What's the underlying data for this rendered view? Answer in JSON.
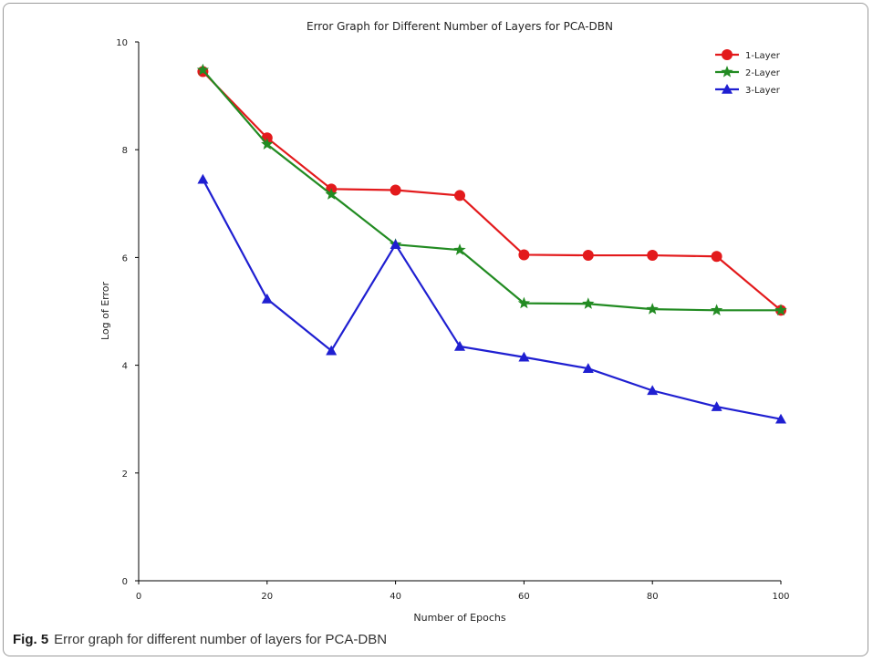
{
  "caption": {
    "label": "Fig. 5",
    "text": "Error graph for different number of layers for PCA-DBN"
  },
  "chart_data": {
    "type": "line",
    "title": "Error Graph for Different Number of Layers for PCA-DBN",
    "xlabel": "Number of Epochs",
    "ylabel": "Log of Error",
    "xlim": [
      0,
      100
    ],
    "ylim": [
      0,
      10
    ],
    "xticks": [
      0,
      20,
      40,
      60,
      80,
      100
    ],
    "yticks": [
      0,
      2,
      4,
      6,
      8,
      10
    ],
    "grid": false,
    "legend_position": "top-right",
    "x": [
      10,
      20,
      30,
      40,
      50,
      60,
      70,
      80,
      90,
      100
    ],
    "series": [
      {
        "name": "1-Layer",
        "color": "#e31a1c",
        "marker": "circle",
        "values": [
          9.45,
          8.22,
          7.27,
          7.25,
          7.15,
          6.05,
          6.04,
          6.04,
          6.02,
          5.02
        ]
      },
      {
        "name": "2-Layer",
        "color": "#228b22",
        "marker": "star",
        "values": [
          9.48,
          8.1,
          7.17,
          6.24,
          6.14,
          5.15,
          5.14,
          5.04,
          5.02,
          5.02
        ]
      },
      {
        "name": "3-Layer",
        "color": "#1f1fd1",
        "marker": "triangle",
        "values": [
          7.45,
          5.23,
          4.27,
          6.24,
          4.35,
          4.15,
          3.94,
          3.53,
          3.23,
          3.0
        ]
      }
    ]
  }
}
